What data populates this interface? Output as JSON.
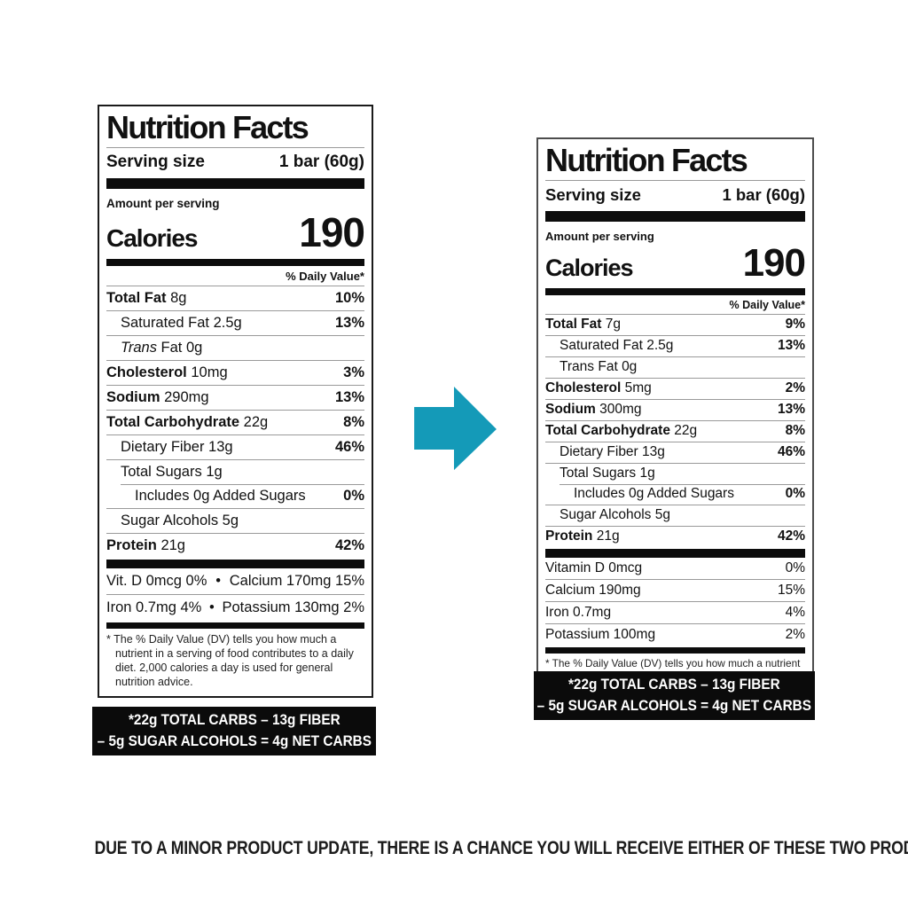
{
  "arrow_color": "#149AB8",
  "left": {
    "title": "Nutrition Facts",
    "serving_size_label": "Serving size",
    "serving_size_value": "1 bar (60g)",
    "amount_per_serving": "Amount per serving",
    "calories_label": "Calories",
    "calories_value": "190",
    "daily_value_header": "% Daily Value*",
    "rows": [
      {
        "name": "Total Fat",
        "amount": "8g",
        "dv": "10%"
      },
      {
        "name": "Saturated Fat",
        "amount": "2.5g",
        "dv": "13%"
      },
      {
        "name": "Trans",
        "amount": "Fat 0g",
        "dv": ""
      },
      {
        "name": "Cholesterol",
        "amount": "10mg",
        "dv": "3%"
      },
      {
        "name": "Sodium",
        "amount": "290mg",
        "dv": "13%"
      },
      {
        "name": "Total Carbohydrate",
        "amount": "22g",
        "dv": "8%"
      },
      {
        "name": "Dietary Fiber",
        "amount": "13g",
        "dv": "46%"
      },
      {
        "name": "Total Sugars",
        "amount": "1g",
        "dv": ""
      },
      {
        "name": "Includes 0g Added Sugars",
        "amount": "",
        "dv": "0%"
      },
      {
        "name": "Sugar Alcohols",
        "amount": "5g",
        "dv": ""
      },
      {
        "name": "Protein",
        "amount": "21g",
        "dv": "42%"
      }
    ],
    "micros": [
      {
        "left": "Vit. D 0mcg 0%",
        "sep": "•",
        "right": "Calcium 170mg 15%"
      },
      {
        "left": "Iron 0.7mg 4%",
        "sep": "•",
        "right": "Potassium 130mg 2%"
      }
    ],
    "footnote": "* The % Daily Value (DV) tells you how much a nutrient in a serving of food contributes to a daily diet. 2,000 calories a day is used for general nutrition advice.",
    "net_carbs_line1": "*22g TOTAL CARBS – 13g FIBER",
    "net_carbs_line2": "– 5g SUGAR ALCOHOLS = 4g NET CARBS"
  },
  "right": {
    "title": "Nutrition Facts",
    "serving_size_label": "Serving size",
    "serving_size_value": "1 bar (60g)",
    "amount_per_serving": "Amount per serving",
    "calories_label": "Calories",
    "calories_value": "190",
    "daily_value_header": "% Daily Value*",
    "rows": [
      {
        "name": "Total Fat",
        "amount": "7g",
        "dv": "9%"
      },
      {
        "name": "Saturated Fat",
        "amount": "2.5g",
        "dv": "13%"
      },
      {
        "name": "Trans Fat",
        "amount": "0g",
        "dv": ""
      },
      {
        "name": "Cholesterol",
        "amount": "5mg",
        "dv": "2%"
      },
      {
        "name": "Sodium",
        "amount": "300mg",
        "dv": "13%"
      },
      {
        "name": "Total Carbohydrate",
        "amount": "22g",
        "dv": "8%"
      },
      {
        "name": "Dietary Fiber",
        "amount": "13g",
        "dv": "46%"
      },
      {
        "name": "Total Sugars",
        "amount": "1g",
        "dv": ""
      },
      {
        "name": "Includes 0g Added Sugars",
        "amount": "",
        "dv": "0%"
      },
      {
        "name": "Sugar Alcohols",
        "amount": "5g",
        "dv": ""
      },
      {
        "name": "Protein",
        "amount": "21g",
        "dv": "42%"
      }
    ],
    "micros": [
      {
        "name": "Vitamin D 0mcg",
        "dv": "0%"
      },
      {
        "name": "Calcium 190mg",
        "dv": "15%"
      },
      {
        "name": "Iron 0.7mg",
        "dv": "4%"
      },
      {
        "name": "Potassium 100mg",
        "dv": "2%"
      }
    ],
    "footnote": "* The % Daily Value (DV) tells you how much a nutrient in a serving of food contributes to a daily diet. 2,000 calories a day is used for general nutrition advice.",
    "net_carbs_line1": "*22g TOTAL CARBS – 13g FIBER",
    "net_carbs_line2": "– 5g SUGAR ALCOHOLS = 4g NET CARBS"
  },
  "disclaimer": "DUE TO A MINOR PRODUCT UPDATE, THERE IS A CHANCE YOU WILL RECEIVE EITHER OF THESE TWO PRODUCTS"
}
